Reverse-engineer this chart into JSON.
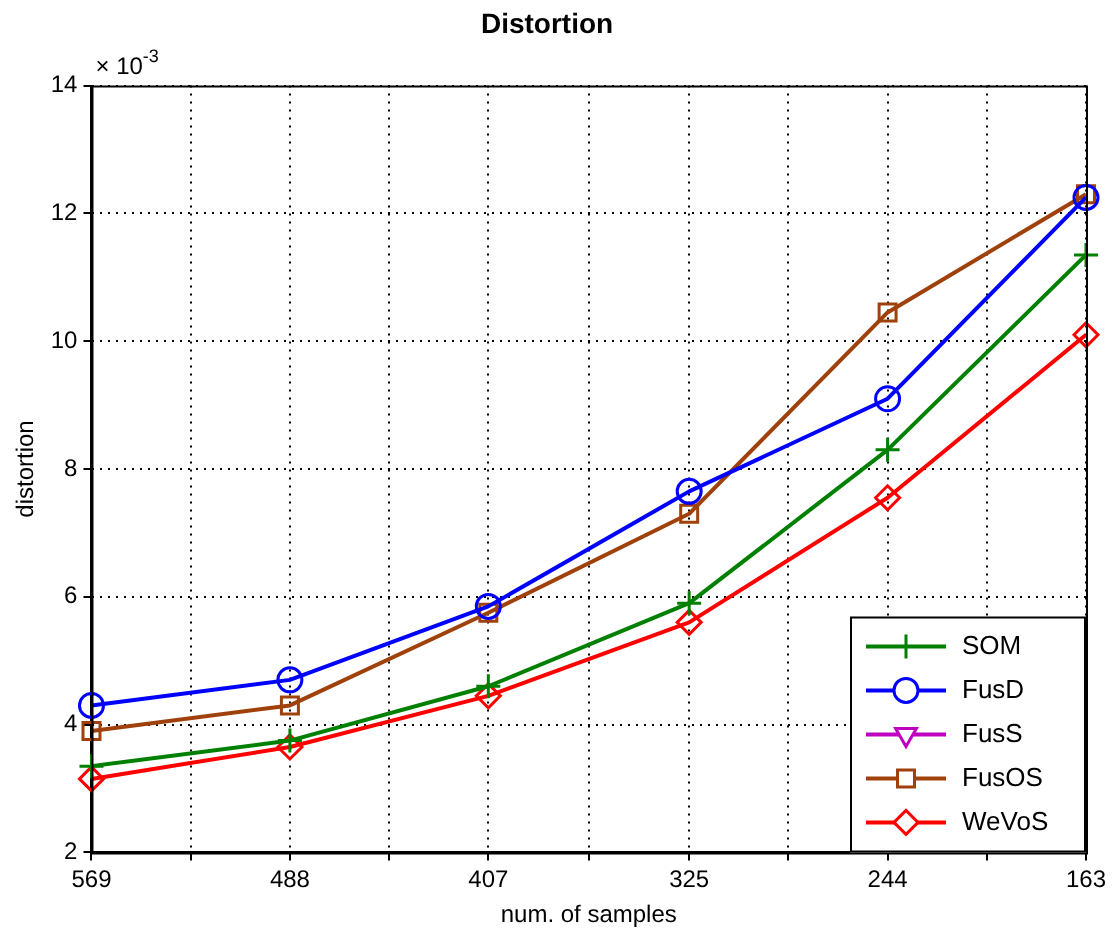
{
  "chart_data": {
    "type": "line",
    "title": "Distortion",
    "xlabel": "num. of samples",
    "ylabel": "distortion",
    "annotations": [
      "× 10$^{-3}$"
    ],
    "x": [
      569,
      488,
      407,
      325,
      244,
      163
    ],
    "xlim": [
      569,
      163
    ],
    "xticks": [
      569,
      {
        "value": 528.5,
        "label": null
      },
      488,
      {
        "value": 447.5,
        "label": null
      },
      407,
      {
        "value": 366,
        "label": null
      },
      325,
      {
        "value": 284.5,
        "label": null
      },
      244,
      {
        "value": 203.5,
        "label": null
      },
      163
    ],
    "ylim": [
      2,
      14
    ],
    "yticks": [
      2,
      4,
      6,
      8,
      10,
      12,
      14
    ],
    "grid": true,
    "legend": "bottom right",
    "line_style": "solid",
    "series": [
      {
        "name": "SOM",
        "color": "#008000",
        "marker": "cross",
        "values": [
          3.35,
          3.75,
          4.6,
          5.9,
          8.3,
          11.35
        ]
      },
      {
        "name": "FusD",
        "color": "#0000ff",
        "marker": "circle",
        "values": [
          4.3,
          4.7,
          5.85,
          7.65,
          9.1,
          12.25
        ]
      },
      {
        "name": "FusS",
        "color": "#bf00bf",
        "marker": "triangle",
        "values": [
          null,
          null,
          null,
          null,
          null,
          null
        ]
      },
      {
        "name": "FusOS",
        "color": "#a0400a",
        "marker": "square",
        "values": [
          3.9,
          4.3,
          5.75,
          7.3,
          10.45,
          12.3
        ]
      },
      {
        "name": "WeVoS",
        "color": "#ff0000",
        "marker": "diamond",
        "values": [
          3.15,
          3.65,
          4.45,
          5.6,
          7.55,
          10.1
        ]
      }
    ]
  }
}
